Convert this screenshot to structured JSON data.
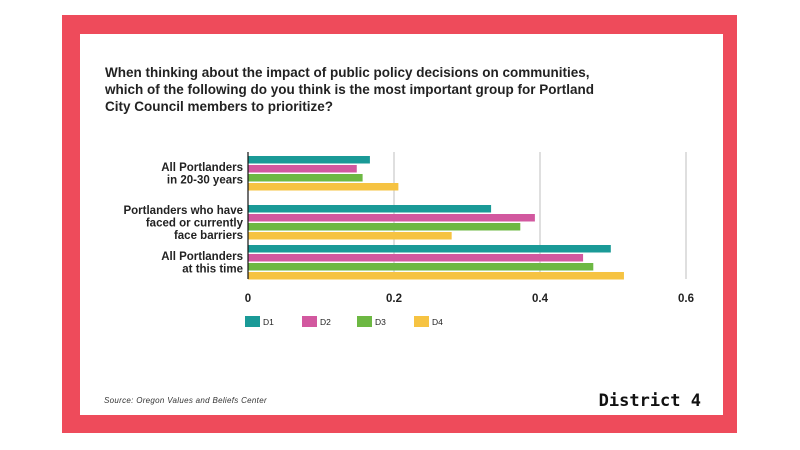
{
  "title": "When thinking about the impact of public policy decisions on communities, which of the following do you think is the most important group for Portland City Council members to prioritize?",
  "source": "Source: Oregon Values and Beliefs Center",
  "brand": "District 4",
  "colors": {
    "frame": "#ee4b5b",
    "grid": "#bfbfbf",
    "axis": "#111111"
  },
  "chart_data": {
    "type": "bar",
    "orientation": "horizontal",
    "categories": [
      [
        "All Portlanders",
        "in 20-30 years"
      ],
      [
        "Portlanders who have",
        "faced or currently",
        "face barriers"
      ],
      [
        "All Portlanders",
        "at this time"
      ]
    ],
    "series": [
      {
        "name": "D1",
        "color": "#1a9a97",
        "values": [
          0.167,
          0.333,
          0.497
        ]
      },
      {
        "name": "D2",
        "color": "#d2589f",
        "values": [
          0.149,
          0.393,
          0.459
        ]
      },
      {
        "name": "D3",
        "color": "#6db843",
        "values": [
          0.157,
          0.373,
          0.473
        ]
      },
      {
        "name": "D4",
        "color": "#f6c342",
        "values": [
          0.206,
          0.279,
          0.515
        ]
      }
    ],
    "xticks": [
      0,
      0.2,
      0.4,
      0.6
    ],
    "xtick_labels": [
      "0",
      "0.2",
      "0.4",
      "0.6"
    ],
    "xlim": [
      0,
      0.6
    ],
    "grid": true,
    "legend_position": "bottom-left"
  }
}
